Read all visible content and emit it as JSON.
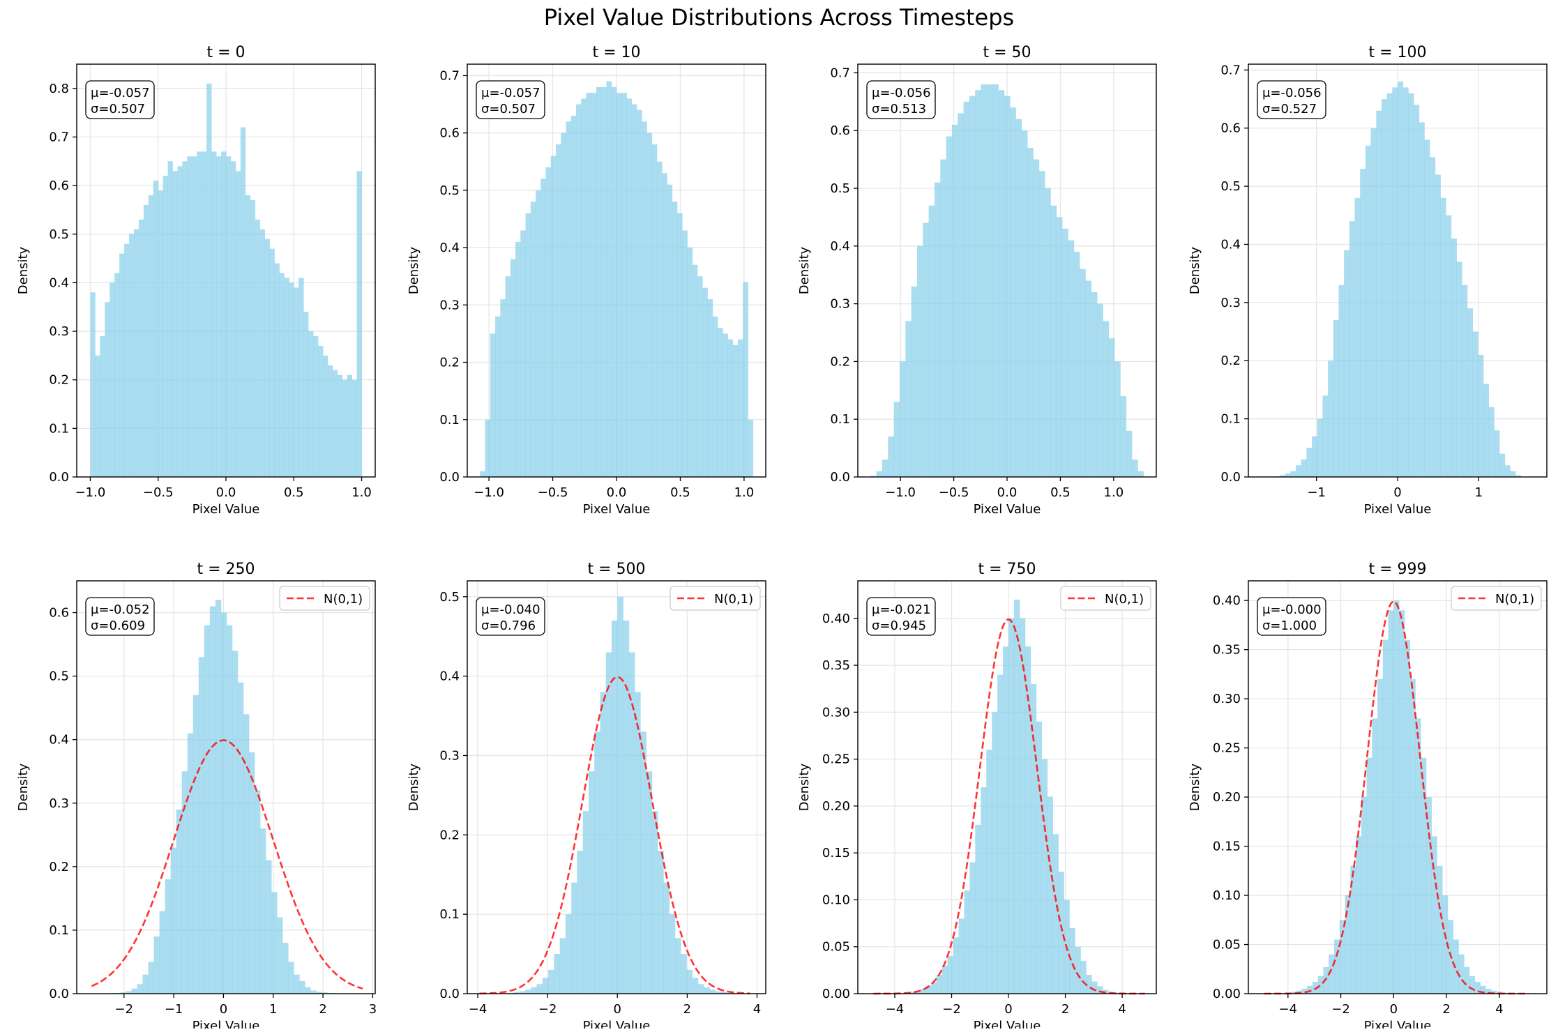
{
  "figure_title": "Pixel Value Distributions Across Timesteps",
  "colors": {
    "bar": "#87CEEB",
    "normal_curve": "#FF0000",
    "grid": "#e6e6e6"
  },
  "chart_data": [
    {
      "type": "bar",
      "title": "t = 0",
      "xlabel": "Pixel Value",
      "ylabel": "Density",
      "xlim": [
        -1.1,
        1.1
      ],
      "ylim": [
        0,
        0.85
      ],
      "xticks": [
        -1.0,
        -0.5,
        0.0,
        0.5,
        1.0
      ],
      "xtick_labels": [
        "−1.0",
        "−0.5",
        "0.0",
        "0.5",
        "1.0"
      ],
      "yticks": [
        0,
        0.1,
        0.2,
        0.3,
        0.4,
        0.5,
        0.6,
        0.7,
        0.8
      ],
      "ytick_labels": [
        "0.0",
        "0.1",
        "0.2",
        "0.3",
        "0.4",
        "0.5",
        "0.6",
        "0.7",
        "0.8"
      ],
      "stats_text": [
        "μ=-0.057",
        "σ=0.507"
      ],
      "bin_range": [
        -1.0,
        1.0
      ],
      "values": [
        0.38,
        0.25,
        0.29,
        0.36,
        0.4,
        0.42,
        0.46,
        0.48,
        0.5,
        0.51,
        0.53,
        0.56,
        0.58,
        0.61,
        0.59,
        0.62,
        0.65,
        0.63,
        0.64,
        0.65,
        0.66,
        0.66,
        0.67,
        0.67,
        0.81,
        0.67,
        0.66,
        0.67,
        0.66,
        0.65,
        0.63,
        0.72,
        0.58,
        0.57,
        0.53,
        0.51,
        0.49,
        0.47,
        0.44,
        0.42,
        0.41,
        0.4,
        0.39,
        0.41,
        0.34,
        0.3,
        0.29,
        0.27,
        0.25,
        0.23,
        0.22,
        0.21,
        0.2,
        0.21,
        0.2,
        0.63
      ]
    },
    {
      "type": "bar",
      "title": "t = 10",
      "xlabel": "Pixel Value",
      "ylabel": "Density",
      "xlim": [
        -1.17,
        1.17
      ],
      "ylim": [
        0,
        0.72
      ],
      "xticks": [
        -1.0,
        -0.5,
        0.0,
        0.5,
        1.0
      ],
      "xtick_labels": [
        "−1.0",
        "−0.5",
        "0.0",
        "0.5",
        "1.0"
      ],
      "yticks": [
        0,
        0.1,
        0.2,
        0.3,
        0.4,
        0.5,
        0.6,
        0.7
      ],
      "ytick_labels": [
        "0.0",
        "0.1",
        "0.2",
        "0.3",
        "0.4",
        "0.5",
        "0.6",
        "0.7"
      ],
      "stats_text": [
        "μ=-0.057",
        "σ=0.507"
      ],
      "bin_range": [
        -1.07,
        1.07
      ],
      "values": [
        0.01,
        0.1,
        0.25,
        0.28,
        0.31,
        0.35,
        0.38,
        0.41,
        0.43,
        0.46,
        0.48,
        0.5,
        0.52,
        0.54,
        0.56,
        0.58,
        0.6,
        0.62,
        0.63,
        0.65,
        0.66,
        0.67,
        0.67,
        0.68,
        0.68,
        0.69,
        0.68,
        0.67,
        0.67,
        0.66,
        0.65,
        0.64,
        0.62,
        0.6,
        0.58,
        0.55,
        0.53,
        0.51,
        0.48,
        0.46,
        0.43,
        0.4,
        0.37,
        0.35,
        0.33,
        0.31,
        0.28,
        0.26,
        0.25,
        0.24,
        0.23,
        0.24,
        0.34,
        0.1
      ]
    },
    {
      "type": "bar",
      "title": "t = 50",
      "xlabel": "Pixel Value",
      "ylabel": "Density",
      "xlim": [
        -1.4,
        1.4
      ],
      "ylim": [
        0,
        0.715
      ],
      "xticks": [
        -1.0,
        -0.5,
        0.0,
        0.5,
        1.0
      ],
      "xtick_labels": [
        "−1.0",
        "−0.5",
        "0.0",
        "0.5",
        "1.0"
      ],
      "yticks": [
        0,
        0.1,
        0.2,
        0.3,
        0.4,
        0.5,
        0.6,
        0.7
      ],
      "ytick_labels": [
        "0.0",
        "0.1",
        "0.2",
        "0.3",
        "0.4",
        "0.5",
        "0.6",
        "0.7"
      ],
      "stats_text": [
        "μ=-0.056",
        "σ=0.513"
      ],
      "bin_range": [
        -1.28,
        1.28
      ],
      "values": [
        0.002,
        0.01,
        0.03,
        0.07,
        0.13,
        0.2,
        0.27,
        0.33,
        0.4,
        0.44,
        0.47,
        0.51,
        0.55,
        0.59,
        0.61,
        0.63,
        0.65,
        0.66,
        0.67,
        0.68,
        0.68,
        0.68,
        0.67,
        0.66,
        0.64,
        0.62,
        0.6,
        0.57,
        0.55,
        0.53,
        0.5,
        0.47,
        0.45,
        0.43,
        0.41,
        0.39,
        0.36,
        0.34,
        0.32,
        0.3,
        0.27,
        0.24,
        0.2,
        0.14,
        0.08,
        0.03,
        0.01
      ]
    },
    {
      "type": "bar",
      "title": "t = 100",
      "xlabel": "Pixel Value",
      "ylabel": "Density",
      "xlim": [
        -1.84,
        1.84
      ],
      "ylim": [
        0,
        0.71
      ],
      "xticks": [
        -1,
        0,
        1
      ],
      "xtick_labels": [
        "−1",
        "0",
        "1"
      ],
      "yticks": [
        0,
        0.1,
        0.2,
        0.3,
        0.4,
        0.5,
        0.6,
        0.7
      ],
      "ytick_labels": [
        "0.0",
        "0.1",
        "0.2",
        "0.3",
        "0.4",
        "0.5",
        "0.6",
        "0.7"
      ],
      "stats_text": [
        "μ=-0.056",
        "σ=0.527"
      ],
      "bin_range": [
        -1.52,
        1.52
      ],
      "values": [
        0.001,
        0.003,
        0.006,
        0.01,
        0.02,
        0.03,
        0.05,
        0.07,
        0.1,
        0.14,
        0.2,
        0.27,
        0.33,
        0.39,
        0.44,
        0.48,
        0.53,
        0.57,
        0.6,
        0.63,
        0.65,
        0.66,
        0.67,
        0.68,
        0.67,
        0.66,
        0.64,
        0.61,
        0.58,
        0.55,
        0.52,
        0.48,
        0.45,
        0.41,
        0.37,
        0.33,
        0.29,
        0.25,
        0.21,
        0.16,
        0.12,
        0.08,
        0.04,
        0.02,
        0.01,
        0.003
      ]
    },
    {
      "type": "bar",
      "title": "t = 250",
      "xlabel": "Pixel Value",
      "ylabel": "Density",
      "xlim": [
        -2.95,
        3.05
      ],
      "ylim": [
        0,
        0.65
      ],
      "xticks": [
        -2,
        -1,
        0,
        1,
        2,
        3
      ],
      "xtick_labels": [
        "−2",
        "−1",
        "0",
        "1",
        "2",
        "3"
      ],
      "yticks": [
        0,
        0.1,
        0.2,
        0.3,
        0.4,
        0.5,
        0.6
      ],
      "ytick_labels": [
        "0.0",
        "0.1",
        "0.2",
        "0.3",
        "0.4",
        "0.5",
        "0.6"
      ],
      "stats_text": [
        "μ=-0.052",
        "σ=0.609"
      ],
      "legend": "N(0,1)",
      "normal_curve_range": [
        -2.65,
        2.8
      ],
      "bin_range": [
        -2.3,
        2.2
      ],
      "values": [
        0.0005,
        0.001,
        0.002,
        0.004,
        0.008,
        0.015,
        0.03,
        0.05,
        0.09,
        0.13,
        0.18,
        0.23,
        0.29,
        0.35,
        0.41,
        0.47,
        0.53,
        0.58,
        0.61,
        0.62,
        0.6,
        0.58,
        0.54,
        0.49,
        0.44,
        0.38,
        0.32,
        0.26,
        0.21,
        0.16,
        0.12,
        0.08,
        0.05,
        0.03,
        0.02,
        0.01,
        0.005,
        0.003,
        0.002,
        0.001
      ]
    },
    {
      "type": "bar",
      "title": "t = 500",
      "xlabel": "Pixel Value",
      "ylabel": "Density",
      "xlim": [
        -4.3,
        4.25
      ],
      "ylim": [
        0,
        0.52
      ],
      "xticks": [
        -4,
        -2,
        0,
        2,
        4
      ],
      "xtick_labels": [
        "−4",
        "−2",
        "0",
        "2",
        "4"
      ],
      "yticks": [
        0,
        0.1,
        0.2,
        0.3,
        0.4,
        0.5
      ],
      "ytick_labels": [
        "0.0",
        "0.1",
        "0.2",
        "0.3",
        "0.4",
        "0.5"
      ],
      "stats_text": [
        "μ=-0.040",
        "σ=0.796"
      ],
      "legend": "N(0,1)",
      "normal_curve_range": [
        -3.95,
        3.8
      ],
      "bin_range": [
        -3.3,
        3.3
      ],
      "values": [
        0.0005,
        0.001,
        0.002,
        0.003,
        0.005,
        0.008,
        0.012,
        0.02,
        0.03,
        0.05,
        0.07,
        0.1,
        0.14,
        0.18,
        0.23,
        0.28,
        0.33,
        0.38,
        0.43,
        0.47,
        0.5,
        0.47,
        0.43,
        0.38,
        0.33,
        0.28,
        0.23,
        0.18,
        0.14,
        0.1,
        0.07,
        0.05,
        0.03,
        0.02,
        0.012,
        0.008,
        0.005,
        0.003,
        0.002,
        0.001
      ]
    },
    {
      "type": "bar",
      "title": "t = 750",
      "xlabel": "Pixel Value",
      "ylabel": "Density",
      "xlim": [
        -5.3,
        5.2
      ],
      "ylim": [
        0,
        0.44
      ],
      "xticks": [
        -4,
        -2,
        0,
        2,
        4
      ],
      "xtick_labels": [
        "−4",
        "−2",
        "0",
        "2",
        "4"
      ],
      "yticks": [
        0,
        0.05,
        0.1,
        0.15,
        0.2,
        0.25,
        0.3,
        0.35,
        0.4
      ],
      "ytick_labels": [
        "0.00",
        "0.05",
        "0.10",
        "0.15",
        "0.20",
        "0.25",
        "0.30",
        "0.35",
        "0.40"
      ],
      "stats_text": [
        "μ=-0.021",
        "σ=0.945"
      ],
      "legend": "N(0,1)",
      "normal_curve_range": [
        -4.75,
        4.8
      ],
      "bin_range": [
        -3.9,
        3.9
      ],
      "values": [
        0.0005,
        0.001,
        0.002,
        0.003,
        0.005,
        0.008,
        0.012,
        0.02,
        0.03,
        0.04,
        0.06,
        0.08,
        0.11,
        0.14,
        0.18,
        0.22,
        0.26,
        0.3,
        0.34,
        0.37,
        0.4,
        0.42,
        0.4,
        0.37,
        0.33,
        0.29,
        0.25,
        0.21,
        0.17,
        0.13,
        0.1,
        0.07,
        0.05,
        0.035,
        0.02,
        0.013,
        0.008,
        0.004,
        0.002,
        0.001
      ]
    },
    {
      "type": "bar",
      "title": "t = 999",
      "xlabel": "Pixel Value",
      "ylabel": "Density",
      "xlim": [
        -5.5,
        5.8
      ],
      "ylim": [
        0,
        0.42
      ],
      "xticks": [
        -4,
        -2,
        0,
        2,
        4
      ],
      "xtick_labels": [
        "−4",
        "−2",
        "0",
        "2",
        "4"
      ],
      "yticks": [
        0,
        0.05,
        0.1,
        0.15,
        0.2,
        0.25,
        0.3,
        0.35,
        0.4
      ],
      "ytick_labels": [
        "0.00",
        "0.05",
        "0.10",
        "0.15",
        "0.20",
        "0.25",
        "0.30",
        "0.35",
        "0.40"
      ],
      "stats_text": [
        "μ=-0.000",
        "σ=1.000"
      ],
      "legend": "N(0,1)",
      "normal_curve_range": [
        -4.9,
        5.1
      ],
      "bin_range": [
        -4.3,
        4.3
      ],
      "values": [
        0.0004,
        0.001,
        0.002,
        0.003,
        0.005,
        0.008,
        0.012,
        0.018,
        0.027,
        0.04,
        0.055,
        0.075,
        0.1,
        0.13,
        0.16,
        0.2,
        0.24,
        0.28,
        0.32,
        0.36,
        0.39,
        0.4,
        0.39,
        0.36,
        0.32,
        0.28,
        0.24,
        0.2,
        0.16,
        0.13,
        0.1,
        0.075,
        0.055,
        0.04,
        0.027,
        0.018,
        0.012,
        0.008,
        0.005,
        0.003,
        0.002,
        0.001
      ]
    }
  ]
}
